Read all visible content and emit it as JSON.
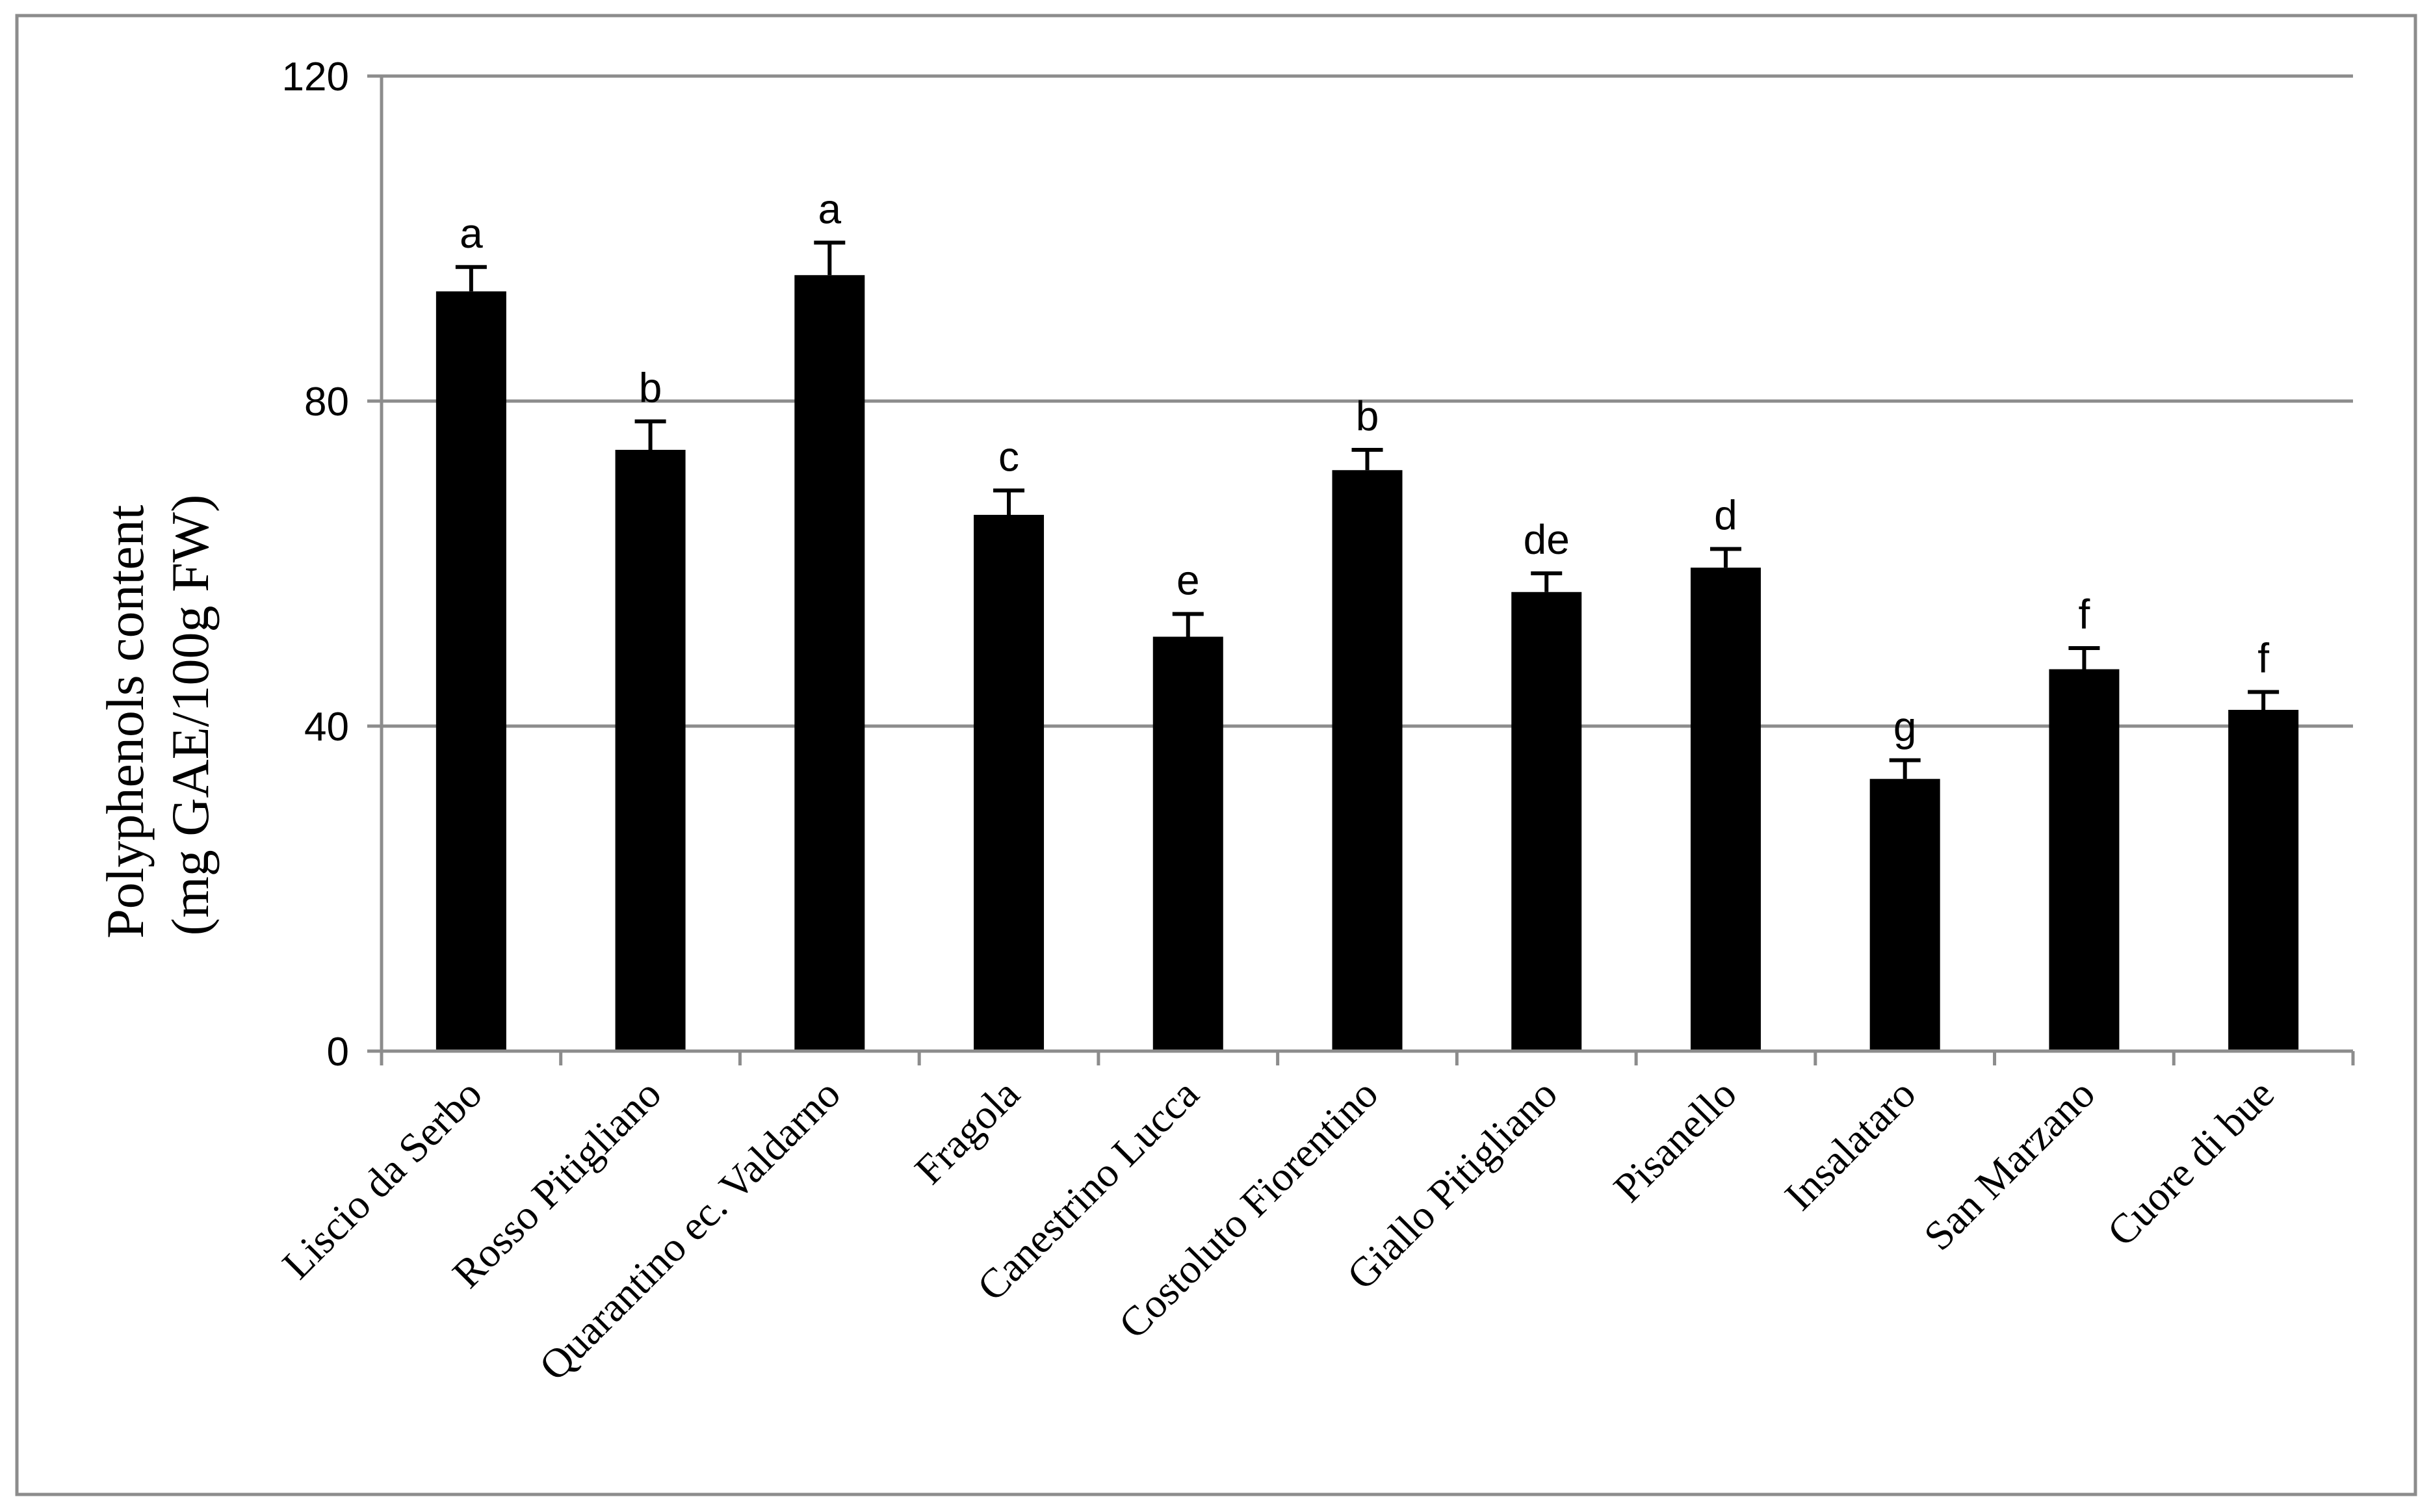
{
  "chart_data": {
    "type": "bar",
    "title": "",
    "xlabel": "",
    "ylabel_lines": [
      "Polyphenols content",
      "(mg GAE/100g FW)"
    ],
    "ylim": [
      0,
      120
    ],
    "yticks": [
      0,
      40,
      80,
      120
    ],
    "grid": true,
    "categories": [
      "Liscio da Serbo",
      "Rosso Pitigliano",
      "Quarantino ec. Valdarno",
      "Fragola",
      "Canestrino Lucca",
      "Costoluto Fiorentino",
      "Giallo Pitigliano",
      "Pisanello",
      "Insalataro",
      "San Marzano",
      "Cuore di bue"
    ],
    "values": [
      93.5,
      74,
      95.5,
      66,
      51,
      71.5,
      56.5,
      59.5,
      33.5,
      47,
      42
    ],
    "errors": [
      3,
      3.5,
      4,
      3,
      2.8,
      2.5,
      2.3,
      2.3,
      2.3,
      2.6,
      2.2
    ],
    "significance": [
      "a",
      "b",
      "a",
      "c",
      "e",
      "b",
      "de",
      "d",
      "g",
      "f",
      "f"
    ],
    "bar_color": "#000000",
    "grid_color": "#8c8c8c"
  }
}
